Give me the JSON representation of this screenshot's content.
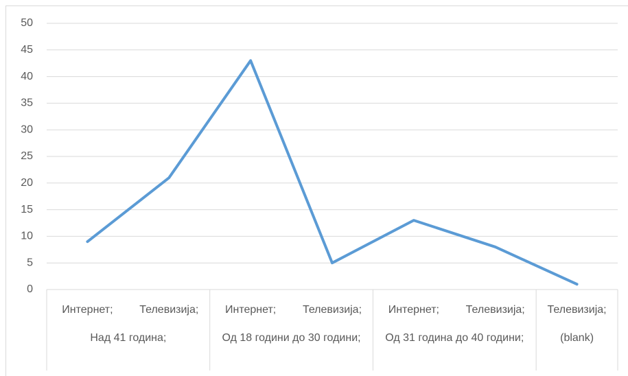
{
  "chart_data": {
    "type": "line",
    "groups": [
      {
        "name": "Над 41 година;",
        "categories": [
          "Интернет;",
          "Телевизија;"
        ]
      },
      {
        "name": "Од 18 години  до 30 години;",
        "categories": [
          "Интернет;",
          "Телевизија;"
        ]
      },
      {
        "name": "Од 31 година до 40 години;",
        "categories": [
          "Интернет;",
          "Телевизија;"
        ]
      },
      {
        "name": "(blank)",
        "categories": [
          "Телевизија;"
        ]
      }
    ],
    "values": [
      9,
      21,
      43,
      5,
      13,
      8,
      1
    ],
    "color": "#5b9bd5",
    "ylim": [
      0,
      50
    ],
    "yticks": [
      0,
      5,
      10,
      15,
      20,
      25,
      30,
      35,
      40,
      45,
      50
    ],
    "grid": true
  }
}
